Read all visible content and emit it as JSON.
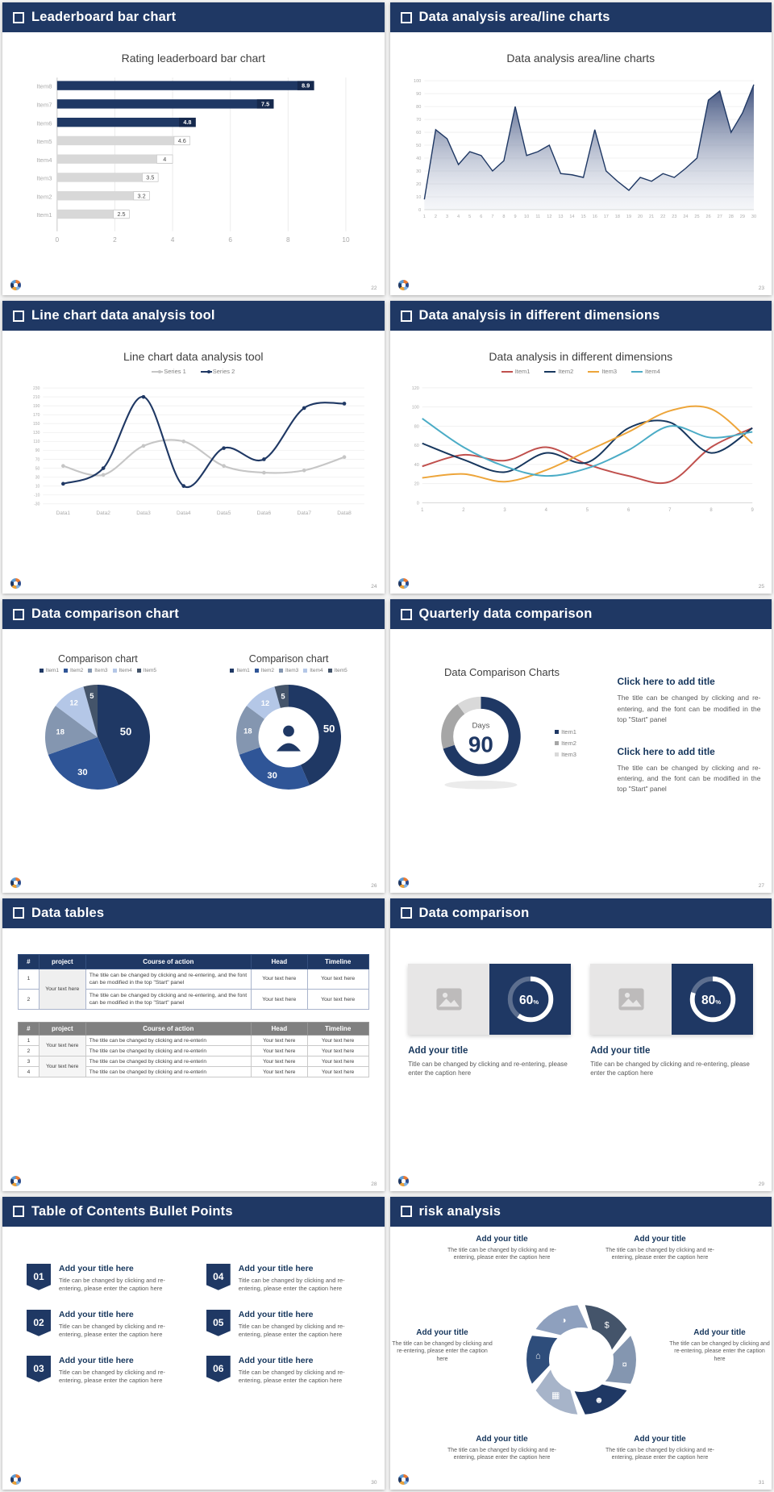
{
  "deck": {
    "accent": "#1F3864",
    "slides": [
      {
        "id": "leaderboard",
        "header": "Leaderboard bar chart",
        "page": "22",
        "chart_title": "Rating leaderboard bar chart",
        "chart_data": {
          "type": "bar",
          "orientation": "horizontal",
          "categories": [
            "Item8",
            "Item7",
            "Item6",
            "Item5",
            "Item4",
            "Item3",
            "Item2",
            "Item1"
          ],
          "values": [
            8.9,
            7.5,
            4.8,
            4.6,
            4,
            3.5,
            3.2,
            2.5
          ],
          "bar_colors": [
            "#1F3864",
            "#1F3864",
            "#1F3864",
            "#D8D8D8",
            "#D8D8D8",
            "#D8D8D8",
            "#D8D8D8",
            "#D8D8D8"
          ],
          "xlim": [
            0,
            10
          ],
          "x_ticks": [
            0,
            2,
            4,
            6,
            8,
            10
          ]
        }
      },
      {
        "id": "area",
        "header": "Data analysis area/line charts",
        "page": "23",
        "chart_title": "Data analysis area/line charts",
        "chart_data": {
          "type": "area",
          "x": [
            1,
            2,
            3,
            4,
            5,
            6,
            7,
            8,
            9,
            10,
            11,
            12,
            13,
            14,
            15,
            16,
            17,
            18,
            19,
            20,
            21,
            22,
            23,
            24,
            25,
            26,
            27,
            28,
            29,
            30
          ],
          "values": [
            8,
            62,
            55,
            35,
            45,
            42,
            30,
            38,
            80,
            42,
            45,
            50,
            28,
            27,
            25,
            62,
            30,
            22,
            15,
            25,
            22,
            28,
            25,
            32,
            40,
            85,
            92,
            60,
            75,
            97
          ],
          "ylim": [
            0,
            100
          ],
          "y_step": 10,
          "line_color": "#1F3864",
          "fill_from": "#2B3F70",
          "fill_to": "#D7DCE8"
        }
      },
      {
        "id": "linetool",
        "header": "Line chart data analysis tool",
        "page": "24",
        "chart_title": "Line chart data analysis tool",
        "chart_data": {
          "type": "line",
          "categories": [
            "Data1",
            "Data2",
            "Data3",
            "Data4",
            "Data5",
            "Data6",
            "Data7",
            "Data8"
          ],
          "ylim": [
            -30,
            230
          ],
          "y_step": 20,
          "series": [
            {
              "name": "Series 1",
              "color": "#C6C6C6",
              "values": [
                55,
                35,
                100,
                110,
                55,
                40,
                45,
                75
              ]
            },
            {
              "name": "Series 2",
              "color": "#1F3864",
              "values": [
                15,
                50,
                210,
                10,
                95,
                70,
                185,
                195
              ]
            }
          ]
        }
      },
      {
        "id": "dimensions",
        "header": "Data analysis in different dimensions",
        "page": "25",
        "chart_title": "Data analysis in different dimensions",
        "chart_data": {
          "type": "line",
          "x": [
            1,
            2,
            3,
            4,
            5,
            6,
            7,
            8,
            9
          ],
          "ylim": [
            0,
            120
          ],
          "y_step": 20,
          "series": [
            {
              "name": "Item1",
              "color": "#C0504D",
              "values": [
                38,
                50,
                44,
                58,
                40,
                28,
                22,
                58,
                78
              ]
            },
            {
              "name": "Item2",
              "color": "#17375E",
              "values": [
                62,
                45,
                32,
                52,
                42,
                78,
                84,
                52,
                78
              ]
            },
            {
              "name": "Item3",
              "color": "#EDA53A",
              "values": [
                26,
                30,
                22,
                34,
                54,
                74,
                96,
                98,
                62
              ]
            },
            {
              "name": "Item4",
              "color": "#4BACC6",
              "values": [
                88,
                58,
                38,
                28,
                36,
                55,
                80,
                68,
                74
              ]
            }
          ]
        }
      },
      {
        "id": "comparison",
        "header": "Data comparison chart",
        "page": "26",
        "legend": [
          "Item1",
          "Item2",
          "Item3",
          "Item4",
          "Item5"
        ],
        "colors": [
          "#1F3864",
          "#2F5597",
          "#8496B0",
          "#B4C7E7",
          "#44546A"
        ],
        "pie": {
          "title": "Comparison chart",
          "type": "pie",
          "values": [
            50,
            30,
            18,
            12,
            5
          ]
        },
        "donut": {
          "title": "Comparison chart",
          "type": "pie",
          "values": [
            50,
            30,
            18,
            12,
            5
          ],
          "center_icon": "presenter-icon"
        }
      },
      {
        "id": "quarterly",
        "header": "Quarterly data comparison",
        "page": "27",
        "chart_title": "Data Comparison Charts",
        "donut": {
          "type": "pie",
          "values": [
            70,
            20,
            10
          ],
          "colors": [
            "#1F3864",
            "#A6A6A6",
            "#D9D9D9"
          ],
          "legend": [
            "Item1",
            "Item2",
            "Item3"
          ],
          "center_label": "Days",
          "center_value": "90"
        },
        "blocks": [
          {
            "title": "Click here to add title",
            "body": "The title can be changed by clicking and re-entering, and the font can be modified in the top \"Start\" panel"
          },
          {
            "title": "Click here to add title",
            "body": "The title can be changed by clicking and re-entering, and the font can be modified in the top \"Start\" panel"
          }
        ]
      },
      {
        "id": "tables",
        "header": "Data tables",
        "page": "28",
        "table1": {
          "headers": [
            "#",
            "project",
            "Course of action",
            "Head",
            "Timeline"
          ],
          "project": "Your text here",
          "rows": [
            {
              "num": "1",
              "action": "The title can be changed by clicking and re-entering, and the font can be modified in the top \"Start\" panel",
              "head": "Your text here",
              "timeline": "Your text here"
            },
            {
              "num": "2",
              "action": "The title can be changed by clicking and re-entering, and the font can be modified in the top \"Start\" panel",
              "head": "Your text here",
              "timeline": "Your text here"
            }
          ]
        },
        "table2": {
          "headers": [
            "#",
            "project",
            "Course of action",
            "Head",
            "Timeline"
          ],
          "project": "Your text here",
          "rows": [
            {
              "num": "1",
              "action": "The title can be changed by clicking and re-enterin",
              "head": "Your text here",
              "timeline": "Your text here"
            },
            {
              "num": "2",
              "action": "The title can be changed by clicking and re-enterin",
              "head": "Your text here",
              "timeline": "Your text here"
            },
            {
              "num": "3",
              "action": "The title can be changed by clicking and re-enterin",
              "head": "Your text here",
              "timeline": "Your text here"
            },
            {
              "num": "4",
              "action": "The title can be changed by clicking and re-enterin",
              "head": "Your text here",
              "timeline": "Your text here"
            }
          ]
        }
      },
      {
        "id": "datacomp",
        "header": "Data comparison",
        "page": "29",
        "cards": [
          {
            "percent": 60,
            "title": "Add your title",
            "caption": "Title can be changed by clicking and re-entering, please enter the caption here"
          },
          {
            "percent": 80,
            "title": "Add your title",
            "caption": "Title can be changed by clicking and re-entering, please enter the caption here"
          }
        ]
      },
      {
        "id": "toc",
        "header": "Table of Contents Bullet Points",
        "page": "30",
        "items": [
          {
            "num": "01",
            "title": "Add your title here",
            "caption": "Title can be changed by clicking and re-entering, please enter the caption here"
          },
          {
            "num": "02",
            "title": "Add your title here",
            "caption": "Title can be changed by clicking and re-entering, please enter the caption here"
          },
          {
            "num": "03",
            "title": "Add your title here",
            "caption": "Title can be changed by clicking and re-entering, please enter the caption here"
          },
          {
            "num": "04",
            "title": "Add your title here",
            "caption": "Title can be changed by clicking and re-entering, please enter the caption here"
          },
          {
            "num": "05",
            "title": "Add your title here",
            "caption": "Title can be changed by clicking and re-entering, please enter the caption here"
          },
          {
            "num": "06",
            "title": "Add your title here",
            "caption": "Title can be changed by clicking and re-entering, please enter the caption here"
          }
        ]
      },
      {
        "id": "risk",
        "header": "risk analysis",
        "page": "31",
        "wheel": {
          "colors": [
            "#44546A",
            "#8496B0",
            "#1F3864",
            "#A7B4C9",
            "#2E4D7B",
            "#8EA0BE"
          ],
          "icons": [
            {
              "name": "money-bag-icon",
              "glyph": "$"
            },
            {
              "name": "coins-icon",
              "glyph": "¤"
            },
            {
              "name": "users-icon",
              "glyph": "☻"
            },
            {
              "name": "chart-board-icon",
              "glyph": "▦"
            },
            {
              "name": "building-icon",
              "glyph": "⌂"
            },
            {
              "name": "pie-chart-icon",
              "glyph": "◑"
            }
          ]
        },
        "labels": [
          {
            "title": "Add your title",
            "caption": "The title can be changed by clicking and re-entering, please enter the caption here"
          },
          {
            "title": "Add your title",
            "caption": "The title can be changed by clicking and re-entering, please enter the caption here"
          },
          {
            "title": "Add your title",
            "caption": "The title can be changed by clicking and re-entering, please enter the caption here"
          },
          {
            "title": "Add your title",
            "caption": "The title can be changed by clicking and re-entering, please enter the caption here"
          },
          {
            "title": "Add your title",
            "caption": "The title can be changed by clicking and re-entering, please enter the caption here"
          },
          {
            "title": "Add your title",
            "caption": "The title can be changed by clicking and re-entering, please enter the caption here"
          }
        ]
      }
    ]
  }
}
